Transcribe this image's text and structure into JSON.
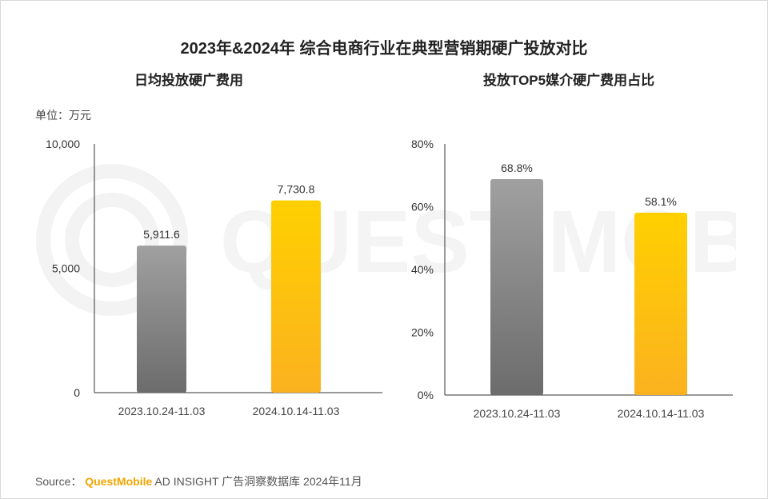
{
  "title": "2023年&2024年 综合电商行业在典型营销期硬广投放对比",
  "unit_label": "单位：万元",
  "source": {
    "prefix": "Source：",
    "brand": "QuestMobile",
    "rest": "AD INSIGHT 广告洞察数据库 2024年11月"
  },
  "watermark_text": "QUEST MOBILE",
  "colors": {
    "gray_top": "#a0a0a0",
    "gray_bottom": "#6c6c6c",
    "gold_top": "#ffd000",
    "gold_bottom": "#fbb21f",
    "axis": "#333333"
  },
  "chart_data": [
    {
      "type": "bar",
      "title": "日均投放硬广费用",
      "categories": [
        "2023.10.24-11.03",
        "2024.10.14-11.03"
      ],
      "values": [
        5911.6,
        7730.8
      ],
      "value_labels": [
        "5,911.6",
        "7,730.8"
      ],
      "ylim": [
        0,
        10000
      ],
      "yticks": [
        0,
        5000,
        10000
      ],
      "ytick_labels": [
        "0",
        "5,000",
        "10,000"
      ],
      "ylabel": "",
      "xlabel": "",
      "grid": false
    },
    {
      "type": "bar",
      "title": "投放TOP5媒介硬广费用占比",
      "categories": [
        "2023.10.24-11.03",
        "2024.10.14-11.03"
      ],
      "values": [
        68.8,
        58.1
      ],
      "value_labels": [
        "68.8%",
        "58.1%"
      ],
      "ylim": [
        0,
        80
      ],
      "yticks": [
        0,
        20,
        40,
        60,
        80
      ],
      "ytick_labels": [
        "0%",
        "20%",
        "40%",
        "60%",
        "80%"
      ],
      "ylabel": "",
      "xlabel": "",
      "grid": false
    }
  ]
}
